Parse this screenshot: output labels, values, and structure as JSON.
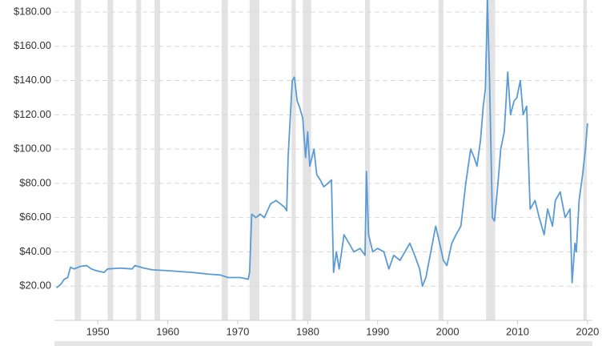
{
  "chart_data": {
    "type": "line",
    "color": "#5b9bd5",
    "band_color": "#e3e3e3",
    "grid": true,
    "xlim": [
      1943.8,
      2020.7
    ],
    "ylim": [
      0,
      187
    ],
    "xticks": [
      1950,
      1960,
      1970,
      1980,
      1990,
      2000,
      2010,
      2020
    ],
    "yticks": [
      {
        "value": 20,
        "label": "$20.00"
      },
      {
        "value": 40,
        "label": "$40.00"
      },
      {
        "value": 60,
        "label": "$60.00"
      },
      {
        "value": 80,
        "label": "$80.00"
      },
      {
        "value": 100,
        "label": "$100.00"
      },
      {
        "value": 120,
        "label": "$120.00"
      },
      {
        "value": 140,
        "label": "$140.00"
      },
      {
        "value": 160,
        "label": "$160.00"
      },
      {
        "value": 180,
        "label": "$180.00"
      }
    ],
    "recessions": [
      [
        1946.7,
        1947.6
      ],
      [
        1951.4,
        1952.2
      ],
      [
        1955.5,
        1956.2
      ],
      [
        1958.1,
        1958.9
      ],
      [
        1967.7,
        1968.6
      ],
      [
        1971.7,
        1973.1
      ],
      [
        1977.7,
        1978.3
      ],
      [
        1979.3,
        1980.5
      ],
      [
        1988.2,
        1988.9
      ],
      [
        1998.7,
        1999.4
      ],
      [
        2005.5,
        2006.8
      ],
      [
        2019.4,
        2019.9
      ]
    ],
    "x": [
      1944.1,
      1944.7,
      1945.2,
      1945.7,
      1946.1,
      1946.6,
      1947.5,
      1948.4,
      1949.1,
      1949.8,
      1950.9,
      1951.4,
      1953.2,
      1954.9,
      1955.3,
      1956.6,
      1957.8,
      1960.1,
      1963.5,
      1965.8,
      1967.5,
      1968.6,
      1970.4,
      1971.5,
      1971.7,
      1972.0,
      1972.6,
      1973.2,
      1973.8,
      1974.7,
      1975.5,
      1976.7,
      1977.0,
      1977.2,
      1977.8,
      1978.1,
      1978.5,
      1978.8,
      1979.3,
      1979.7,
      1980.0,
      1980.3,
      1980.9,
      1981.3,
      1981.8,
      1982.3,
      1982.9,
      1983.4,
      1983.7,
      1984.1,
      1984.5,
      1985.2,
      1985.9,
      1986.6,
      1987.5,
      1988.2,
      1988.4,
      1988.7,
      1989.3,
      1990.0,
      1990.9,
      1991.6,
      1992.3,
      1993.2,
      1993.9,
      1994.6,
      1995.3,
      1996.0,
      1996.4,
      1996.9,
      1997.6,
      1998.3,
      1998.7,
      1999.4,
      1999.9,
      2000.6,
      2001.2,
      2001.9,
      2002.6,
      2003.3,
      2003.8,
      2004.2,
      2004.7,
      2005.1,
      2005.4,
      2005.7,
      2006.0,
      2006.4,
      2006.7,
      2007.2,
      2007.6,
      2008.1,
      2008.6,
      2009.0,
      2009.5,
      2009.9,
      2010.4,
      2010.8,
      2011.3,
      2011.8,
      2012.5,
      2013.1,
      2013.8,
      2014.3,
      2015.0,
      2015.4,
      2016.1,
      2016.8,
      2017.5,
      2017.8,
      2018.2,
      2018.4,
      2018.8,
      2019.3,
      2019.7,
      2020.0
    ],
    "values": [
      19,
      21,
      24,
      25,
      31,
      30,
      31.5,
      32,
      30,
      29,
      28,
      30,
      30.5,
      30,
      32,
      30.5,
      29.5,
      29,
      28,
      27,
      26.5,
      25,
      25,
      24,
      28,
      62,
      60,
      62,
      60,
      68,
      70,
      66,
      64,
      95,
      140,
      142,
      128,
      125,
      118,
      95,
      110,
      90,
      100,
      85,
      82,
      78,
      80,
      82,
      28,
      40,
      30,
      50,
      45,
      40,
      42,
      38,
      87,
      50,
      40,
      42,
      40,
      30,
      38,
      35,
      40,
      45,
      38,
      30,
      20,
      25,
      40,
      55,
      48,
      35,
      32,
      45,
      50,
      55,
      80,
      100,
      95,
      90,
      105,
      125,
      135,
      187,
      140,
      60,
      58,
      80,
      100,
      110,
      145,
      120,
      128,
      130,
      140,
      120,
      125,
      65,
      70,
      60,
      50,
      65,
      55,
      70,
      75,
      60,
      65,
      22,
      45,
      40,
      70,
      85,
      100,
      115
    ]
  }
}
